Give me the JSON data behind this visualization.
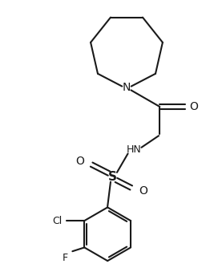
{
  "bg_color": "#ffffff",
  "line_color": "#1a1a1a",
  "line_width": 1.5,
  "text_color": "#1a1a1a",
  "font_size": 9,
  "figsize": [
    2.62,
    3.39
  ],
  "dpi": 100,
  "xlim": [
    0,
    8
  ],
  "ylim": [
    0,
    10.5
  ]
}
